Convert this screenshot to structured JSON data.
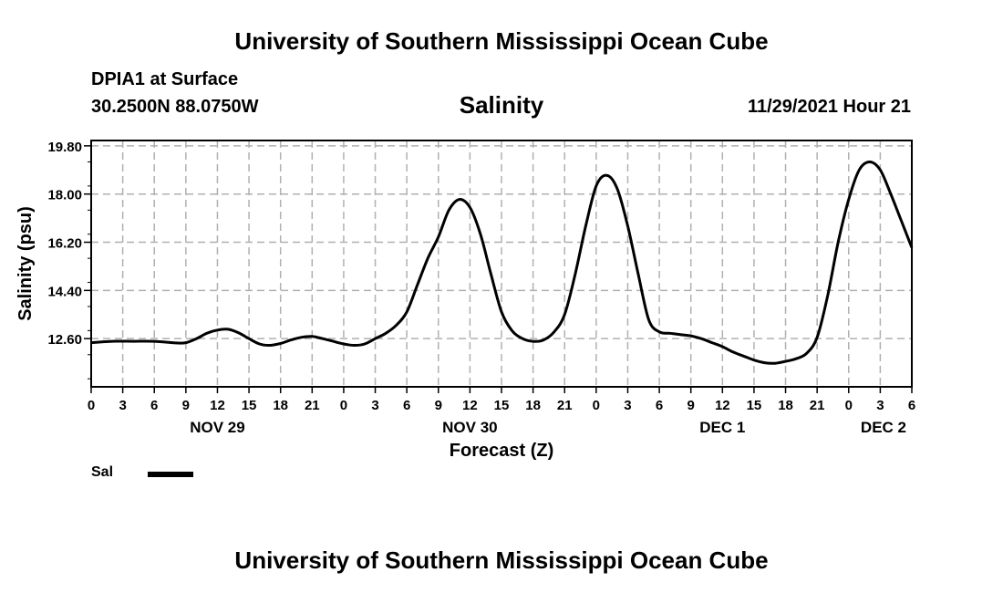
{
  "header": {
    "title": "University of Southern Mississippi Ocean Cube",
    "station": "DPIA1 at Surface",
    "location": "30.2500N  88.0750W",
    "timestamp": "11/29/2021 Hour 21"
  },
  "footer": {
    "title": "University of Southern Mississippi Ocean Cube"
  },
  "legend": {
    "label": "Sal"
  },
  "chart_data": {
    "type": "line",
    "title": "Salinity",
    "xlabel": "Forecast (Z)",
    "ylabel": "Salinity (psu)",
    "ylim": [
      10.8,
      20.0
    ],
    "yticks": [
      "19.80",
      "18.00",
      "16.20",
      "14.40",
      "12.60"
    ],
    "ytick_values": [
      19.8,
      18.0,
      16.2,
      14.4,
      12.6
    ],
    "xlim": [
      0,
      78
    ],
    "xticks": [
      "0",
      "3",
      "6",
      "9",
      "12",
      "15",
      "18",
      "21",
      "0",
      "3",
      "6",
      "9",
      "12",
      "15",
      "18",
      "21",
      "0",
      "3",
      "6",
      "9",
      "12",
      "15",
      "18",
      "21",
      "0",
      "3",
      "6"
    ],
    "date_labels": [
      {
        "label": "NOV 29",
        "hour": 12
      },
      {
        "label": "NOV 30",
        "hour": 36
      },
      {
        "label": "DEC 1",
        "hour": 60
      },
      {
        "label": "DEC 2",
        "hour": 78
      }
    ],
    "grid": true,
    "series": [
      {
        "name": "Sal",
        "color": "#000000",
        "x": [
          0,
          2,
          4,
          6,
          8,
          9,
          10,
          11,
          12,
          13,
          14,
          15,
          16,
          17,
          18,
          19,
          20,
          21,
          22,
          23,
          24,
          25,
          26,
          27,
          28,
          29,
          30,
          31,
          32,
          33,
          34,
          35,
          36,
          37,
          38,
          39,
          40,
          41,
          42,
          43,
          44,
          45,
          46,
          47,
          48,
          49,
          50,
          51,
          52,
          53,
          54,
          55,
          56,
          57,
          58,
          59,
          60,
          61,
          62,
          63,
          64,
          65,
          66,
          67,
          68,
          69,
          70,
          71,
          72,
          73,
          74,
          75,
          76,
          77,
          78
        ],
        "values": [
          12.45,
          12.5,
          12.5,
          12.5,
          12.44,
          12.45,
          12.6,
          12.8,
          12.92,
          12.95,
          12.82,
          12.6,
          12.4,
          12.35,
          12.42,
          12.55,
          12.65,
          12.68,
          12.6,
          12.5,
          12.4,
          12.35,
          12.4,
          12.6,
          12.8,
          13.1,
          13.6,
          14.6,
          15.6,
          16.4,
          17.4,
          17.8,
          17.5,
          16.5,
          15.0,
          13.6,
          12.9,
          12.6,
          12.5,
          12.55,
          12.85,
          13.5,
          15.0,
          16.8,
          18.3,
          18.7,
          18.2,
          16.8,
          15.0,
          13.3,
          12.85,
          12.8,
          12.75,
          12.7,
          12.6,
          12.45,
          12.3,
          12.1,
          11.95,
          11.8,
          11.7,
          11.68,
          11.75,
          11.85,
          12.05,
          12.65,
          14.2,
          16.2,
          17.8,
          18.9,
          19.2,
          18.9,
          18.0,
          17.0,
          16.0
        ]
      }
    ]
  }
}
